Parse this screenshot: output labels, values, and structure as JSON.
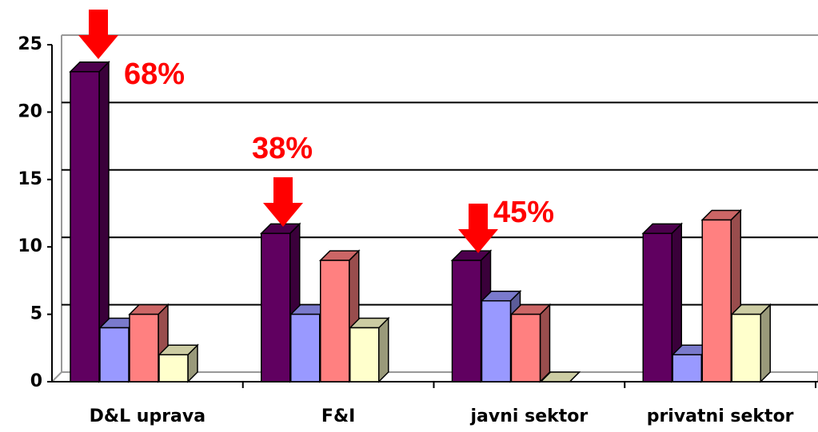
{
  "chart_data": {
    "type": "bar3d",
    "categories": [
      "D&L uprava",
      "F&I",
      "javni sektor",
      "privatni sektor"
    ],
    "series": [
      {
        "color": "#600060",
        "values": [
          23,
          11,
          9,
          11
        ]
      },
      {
        "color": "#9999ff",
        "values": [
          4,
          5,
          6,
          2
        ]
      },
      {
        "color": "#ff8080",
        "values": [
          5,
          9,
          5,
          12
        ]
      },
      {
        "color": "#ffffcc",
        "values": [
          2,
          4,
          0,
          5
        ]
      }
    ],
    "ylim": [
      0,
      25
    ],
    "yticks": [
      0,
      5,
      10,
      15,
      20,
      25
    ],
    "grid": true,
    "annotations": [
      "68%",
      "38%",
      "45%"
    ]
  }
}
